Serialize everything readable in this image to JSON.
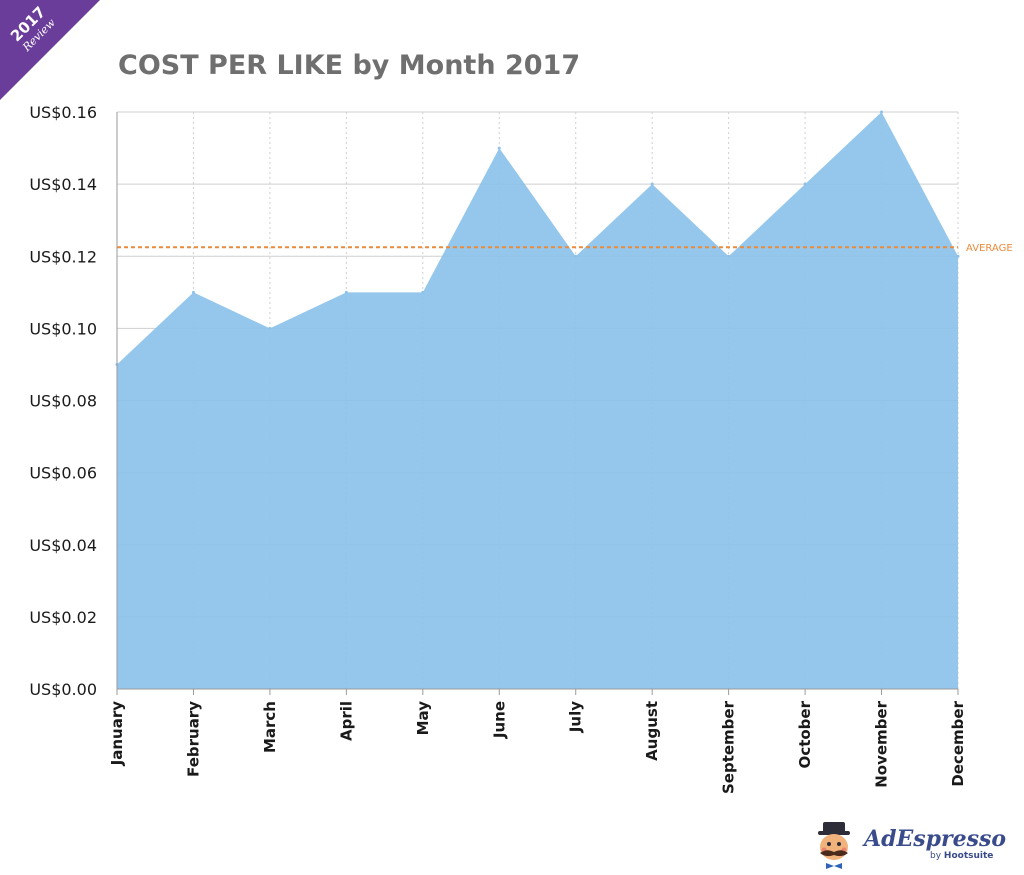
{
  "badge": {
    "year": "2017",
    "label": "Review",
    "color": "#6a3d9a"
  },
  "brand": {
    "name": "AdEspresso",
    "by": "by",
    "parent": "Hootsuite"
  },
  "colors": {
    "area": "#8cc2ea",
    "average": "#ea8b3b",
    "grid": "#cfcfcf",
    "axis": "#9a9a9a"
  },
  "chart_data": {
    "type": "area",
    "title": "COST PER LIKE by Month 2017",
    "categories": [
      "January",
      "February",
      "March",
      "April",
      "May",
      "June",
      "July",
      "August",
      "September",
      "October",
      "November",
      "December"
    ],
    "series": [
      {
        "name": "Cost per like",
        "values": [
          0.09,
          0.11,
          0.1,
          0.11,
          0.11,
          0.15,
          0.12,
          0.14,
          0.12,
          0.14,
          0.16,
          0.12
        ]
      }
    ],
    "average": {
      "label": "AVERAGE",
      "value": 0.1225
    },
    "ylim": [
      0,
      0.16
    ],
    "yticks": [
      0,
      0.02,
      0.04,
      0.06,
      0.08,
      0.1,
      0.12,
      0.14,
      0.16
    ],
    "ytick_labels": [
      "US$0.00",
      "US$0.02",
      "US$0.04",
      "US$0.06",
      "US$0.08",
      "US$0.10",
      "US$0.12",
      "US$0.14",
      "US$0.16"
    ],
    "xlabel": "",
    "ylabel": "",
    "grid": true
  }
}
